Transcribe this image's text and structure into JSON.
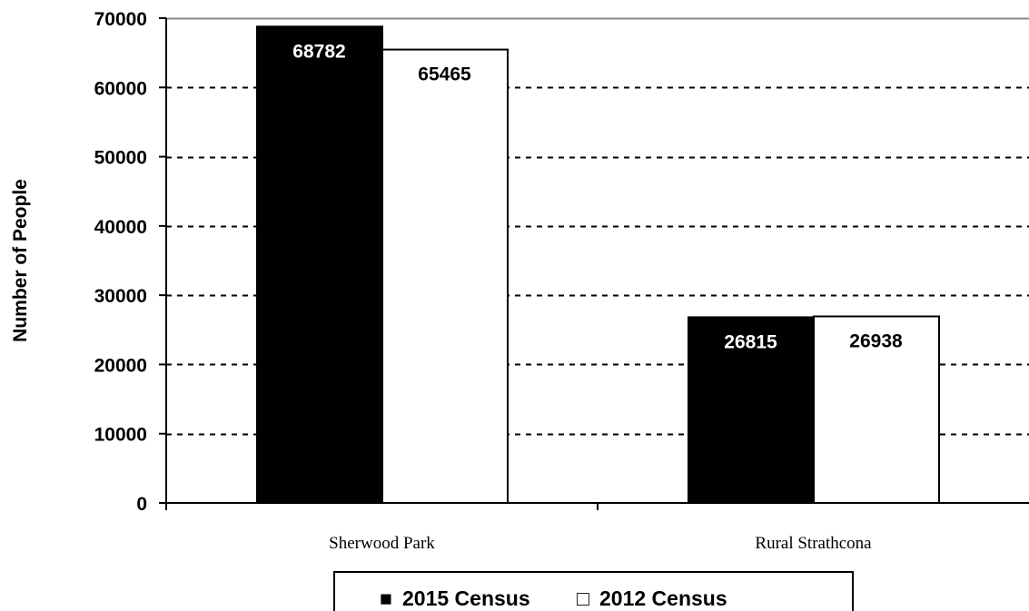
{
  "chart_data": {
    "type": "bar",
    "categories": [
      "Sherwood Park",
      "Rural Strathcona"
    ],
    "series": [
      {
        "name": "2015 Census",
        "values": [
          68782,
          26815
        ],
        "color": "#000000",
        "label_color": "#ffffff"
      },
      {
        "name": "2012 Census",
        "values": [
          65465,
          26938
        ],
        "color": "#ffffff",
        "label_color": "#000000"
      }
    ],
    "title": "",
    "xlabel": "",
    "ylabel": "Number of People",
    "ylim": [
      0,
      70000
    ],
    "yticks": [
      0,
      10000,
      20000,
      30000,
      40000,
      50000,
      60000,
      70000
    ],
    "ytick_labels": [
      "0",
      "10000",
      "20000",
      "30000",
      "40000",
      "50000",
      "60000",
      "70000"
    ],
    "grid": "horizontal dashed",
    "legend_position": "bottom",
    "legend_symbols": [
      "■",
      "□"
    ]
  }
}
